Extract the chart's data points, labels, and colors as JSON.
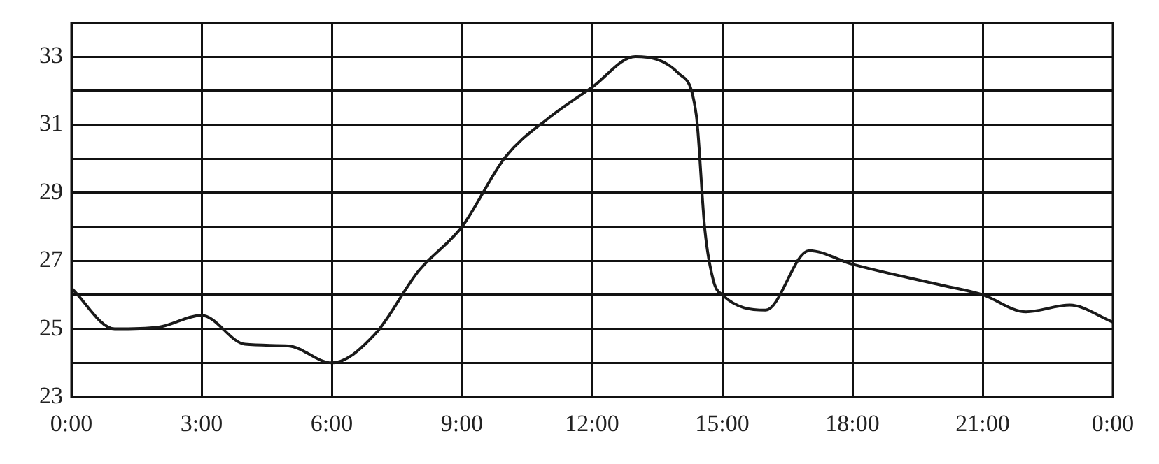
{
  "chart_data": {
    "type": "line",
    "x": [
      0,
      1,
      2,
      3,
      4,
      5,
      6,
      7,
      8,
      9,
      10,
      11,
      12,
      13,
      14,
      14.4,
      14.6,
      14.8,
      15,
      16,
      17,
      18,
      20,
      21,
      22,
      23,
      24
    ],
    "series": [
      {
        "color": "#1a1a1a",
        "values": [
          26.2,
          25.0,
          25.05,
          25.4,
          24.55,
          24.5,
          24.0,
          24.85,
          26.7,
          28.0,
          30.05,
          31.2,
          32.1,
          33.0,
          32.5,
          31.3,
          27.9,
          26.4,
          26.0,
          25.55,
          27.3,
          26.9,
          26.3,
          26.0,
          25.5,
          25.7,
          25.2
        ]
      }
    ],
    "xlim": [
      0,
      24
    ],
    "xticks": [
      {
        "value": 0,
        "label": "0:00"
      },
      {
        "value": 3,
        "label": "3:00"
      },
      {
        "value": 6,
        "label": "6:00"
      },
      {
        "value": 9,
        "label": "9:00"
      },
      {
        "value": 12,
        "label": "12:00"
      },
      {
        "value": 15,
        "label": "15:00"
      },
      {
        "value": 18,
        "label": "18:00"
      },
      {
        "value": 21,
        "label": "21:00"
      },
      {
        "value": 24,
        "label": "0:00"
      }
    ],
    "ylim": [
      23,
      34
    ],
    "yticks": [
      23,
      {
        "value": 24,
        "label": null
      },
      25,
      {
        "value": 26,
        "label": null
      },
      27,
      {
        "value": 28,
        "label": null
      },
      29,
      {
        "value": 30,
        "label": null
      },
      31,
      {
        "value": 32,
        "label": null
      },
      33,
      {
        "value": 34,
        "label": null
      }
    ],
    "grid": true
  }
}
